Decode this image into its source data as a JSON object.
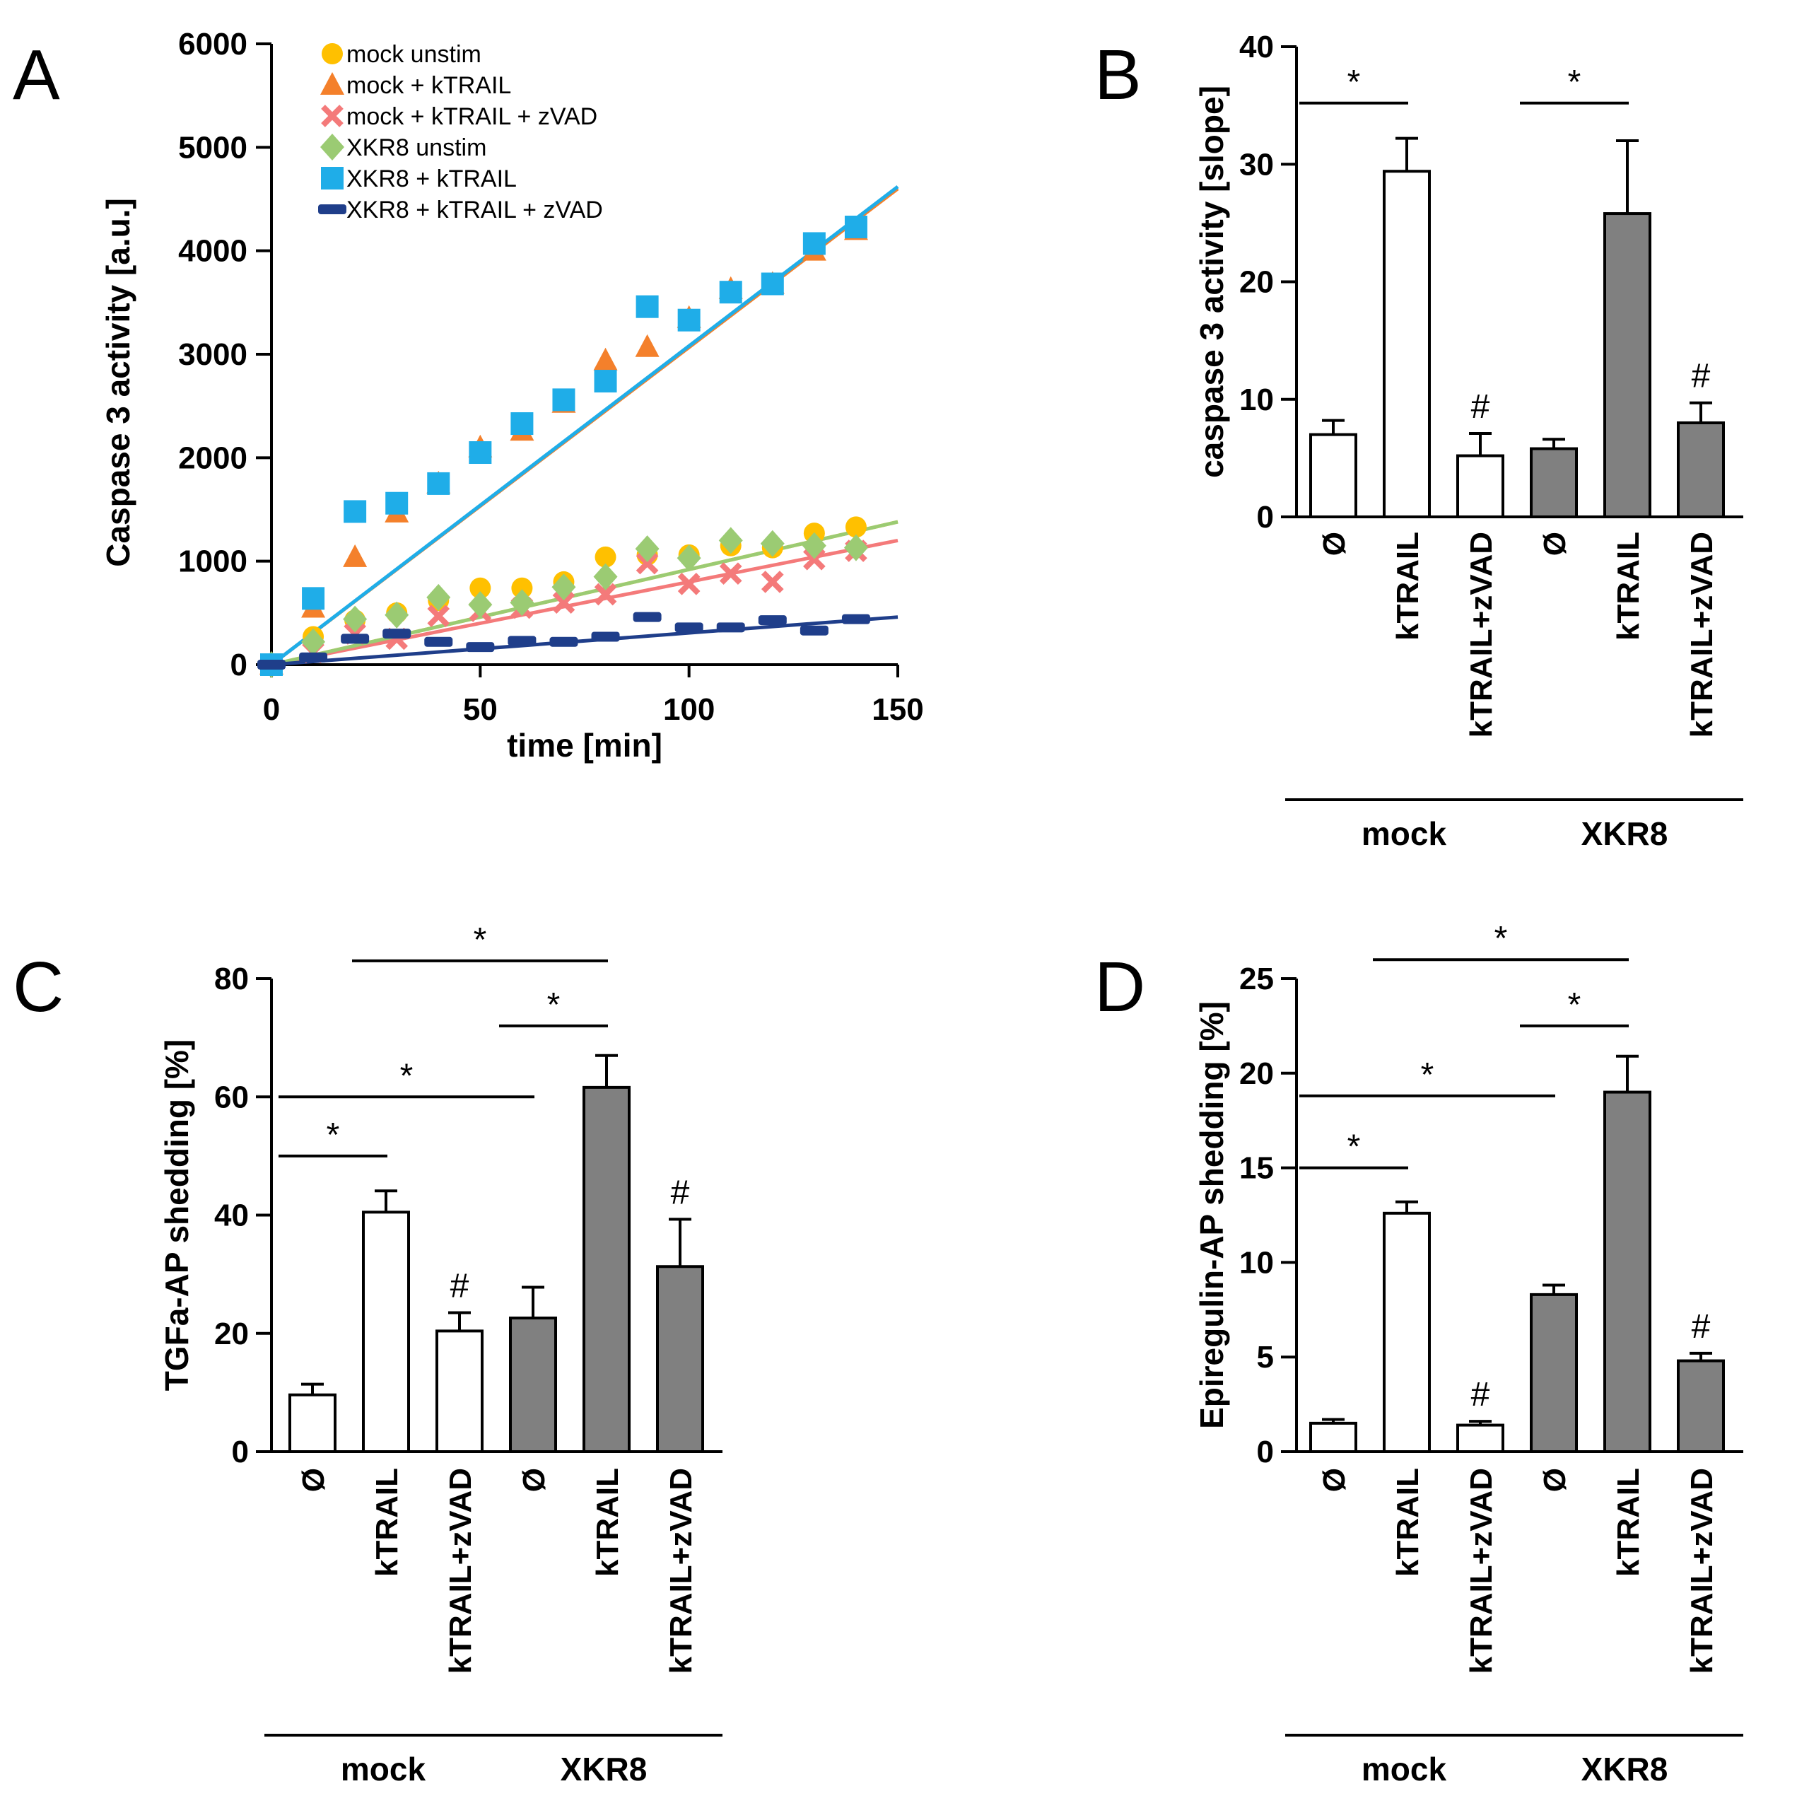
{
  "chart_data": [
    {
      "panel": "A",
      "type": "scatter",
      "title": "",
      "xlabel": "time [min]",
      "ylabel": "Caspase 3 activity [a.u.]",
      "xlim": [
        0,
        150
      ],
      "ylim": [
        0,
        6000
      ],
      "xticks": [
        0,
        50,
        100,
        150
      ],
      "yticks": [
        0,
        1000,
        2000,
        3000,
        4000,
        5000,
        6000
      ],
      "legend_position": "top-left",
      "series": [
        {
          "name": "mock unstim",
          "marker": "circle",
          "color": "#FFC000",
          "x": [
            0,
            10,
            20,
            30,
            40,
            50,
            60,
            70,
            80,
            90,
            100,
            110,
            120,
            130,
            140
          ],
          "y": [
            0,
            270,
            430,
            500,
            620,
            740,
            740,
            800,
            1040,
            1060,
            1060,
            1150,
            1130,
            1270,
            1330
          ],
          "fit": [
            0,
            1380
          ]
        },
        {
          "name": "mock + kTRAIL",
          "marker": "triangle",
          "color": "#F4802B",
          "x": [
            0,
            10,
            20,
            30,
            40,
            50,
            60,
            70,
            80,
            90,
            100,
            110,
            120,
            130,
            140
          ],
          "y": [
            0,
            550,
            1040,
            1470,
            1750,
            2100,
            2260,
            2530,
            2940,
            3070,
            3350,
            3630,
            3680,
            4000,
            4200
          ],
          "fit": [
            0,
            4600
          ]
        },
        {
          "name": "mock + kTRAIL + zVAD",
          "marker": "cross",
          "color": "#F47A7A",
          "x": [
            0,
            10,
            20,
            30,
            40,
            50,
            60,
            70,
            80,
            90,
            100,
            110,
            120,
            130,
            140
          ],
          "y": [
            0,
            120,
            300,
            250,
            470,
            520,
            550,
            600,
            680,
            980,
            780,
            880,
            800,
            1020,
            1100
          ],
          "fit": [
            0,
            1200
          ]
        },
        {
          "name": "XKR8 unstim",
          "marker": "diamond",
          "color": "#9BCB73",
          "x": [
            0,
            10,
            20,
            30,
            40,
            50,
            60,
            70,
            80,
            90,
            100,
            110,
            120,
            130,
            140
          ],
          "y": [
            0,
            220,
            440,
            480,
            650,
            580,
            600,
            750,
            850,
            1120,
            1030,
            1200,
            1170,
            1150,
            1130
          ],
          "fit": [
            0,
            1380
          ]
        },
        {
          "name": "XKR8 + kTRAIL",
          "marker": "square",
          "color": "#1FADE8",
          "x": [
            0,
            10,
            20,
            30,
            40,
            50,
            60,
            70,
            80,
            90,
            100,
            110,
            120,
            130,
            140
          ],
          "y": [
            0,
            640,
            1480,
            1560,
            1750,
            2050,
            2330,
            2560,
            2740,
            3460,
            3330,
            3600,
            3680,
            4070,
            4230
          ],
          "fit": [
            0,
            4620
          ]
        },
        {
          "name": "XKR8 + kTRAIL + zVAD",
          "marker": "dash",
          "color": "#1F3E8A",
          "x": [
            0,
            10,
            20,
            30,
            40,
            50,
            60,
            70,
            80,
            90,
            100,
            110,
            120,
            130,
            140
          ],
          "y": [
            0,
            70,
            250,
            300,
            220,
            170,
            230,
            220,
            270,
            460,
            360,
            360,
            430,
            330,
            440
          ],
          "fit": [
            0,
            460
          ]
        }
      ]
    },
    {
      "panel": "B",
      "type": "bar",
      "ylabel": "caspase 3 activity [slope]",
      "ylim": [
        0,
        40
      ],
      "yticks": [
        0,
        10,
        20,
        30,
        40
      ],
      "categories": [
        "Ø",
        "kTRAIL",
        "kTRAIL+zVAD",
        "Ø",
        "kTRAIL",
        "kTRAIL+zVAD"
      ],
      "values": [
        7.0,
        29.4,
        5.2,
        5.8,
        25.8,
        8.0
      ],
      "errors": [
        1.2,
        2.8,
        1.9,
        0.8,
        6.2,
        1.7
      ],
      "fills": [
        "#FFFFFF",
        "#FFFFFF",
        "#FFFFFF",
        "#808080",
        "#808080",
        "#808080"
      ],
      "hash_marks": [
        "",
        "",
        "#",
        "",
        "",
        "#"
      ],
      "groups": [
        {
          "label": "mock",
          "from": 0,
          "to": 2
        },
        {
          "label": "XKR8",
          "from": 3,
          "to": 5
        }
      ],
      "significance": [
        {
          "from": 0,
          "to": 1,
          "level": 35.2,
          "label": "*"
        },
        {
          "from": 3,
          "to": 4,
          "level": 35.2,
          "label": "*"
        }
      ]
    },
    {
      "panel": "C",
      "type": "bar",
      "ylabel": "TGFa-AP shedding [%]",
      "ylim": [
        0,
        80
      ],
      "yticks": [
        0,
        20,
        40,
        60,
        80
      ],
      "categories": [
        "Ø",
        "kTRAIL",
        "kTRAIL+zVAD",
        "Ø",
        "kTRAIL",
        "kTRAIL+zVAD"
      ],
      "values": [
        9.6,
        40.5,
        20.4,
        22.6,
        61.6,
        31.3
      ],
      "errors": [
        1.8,
        3.6,
        3.1,
        5.2,
        5.4,
        8.0
      ],
      "fills": [
        "#FFFFFF",
        "#FFFFFF",
        "#FFFFFF",
        "#808080",
        "#808080",
        "#808080"
      ],
      "hash_marks": [
        "",
        "",
        "#",
        "",
        "",
        "#"
      ],
      "groups": [
        {
          "label": "mock",
          "from": 0,
          "to": 2
        },
        {
          "label": "XKR8",
          "from": 3,
          "to": 5
        }
      ],
      "significance": [
        {
          "from": 0,
          "to": 1,
          "level": 50.0,
          "label": "*"
        },
        {
          "from": 0,
          "to": 3,
          "level": 60.0,
          "label": "*"
        },
        {
          "from": 3,
          "to": 4,
          "level": 72.0,
          "label": "*"
        },
        {
          "from": 1,
          "to": 4,
          "level": 83.0,
          "label": "*"
        }
      ]
    },
    {
      "panel": "D",
      "type": "bar",
      "ylabel": "Epiregulin-AP shedding [%]",
      "ylim": [
        0,
        25
      ],
      "yticks": [
        0,
        5,
        10,
        15,
        20,
        25
      ],
      "categories": [
        "Ø",
        "kTRAIL",
        "kTRAIL+zVAD",
        "Ø",
        "kTRAIL",
        "kTRAIL+zVAD"
      ],
      "values": [
        1.5,
        12.6,
        1.4,
        8.3,
        19.0,
        4.8
      ],
      "errors": [
        0.2,
        0.6,
        0.2,
        0.5,
        1.9,
        0.4
      ],
      "fills": [
        "#FFFFFF",
        "#FFFFFF",
        "#FFFFFF",
        "#808080",
        "#808080",
        "#808080"
      ],
      "hash_marks": [
        "",
        "",
        "#",
        "",
        "",
        "#"
      ],
      "groups": [
        {
          "label": "mock",
          "from": 0,
          "to": 2
        },
        {
          "label": "XKR8",
          "from": 3,
          "to": 5
        }
      ],
      "significance": [
        {
          "from": 0,
          "to": 1,
          "level": 15.0,
          "label": "*"
        },
        {
          "from": 0,
          "to": 3,
          "level": 18.8,
          "label": "*"
        },
        {
          "from": 3,
          "to": 4,
          "level": 22.5,
          "label": "*"
        },
        {
          "from": 1,
          "to": 4,
          "level": 26.0,
          "label": "*"
        }
      ]
    }
  ]
}
